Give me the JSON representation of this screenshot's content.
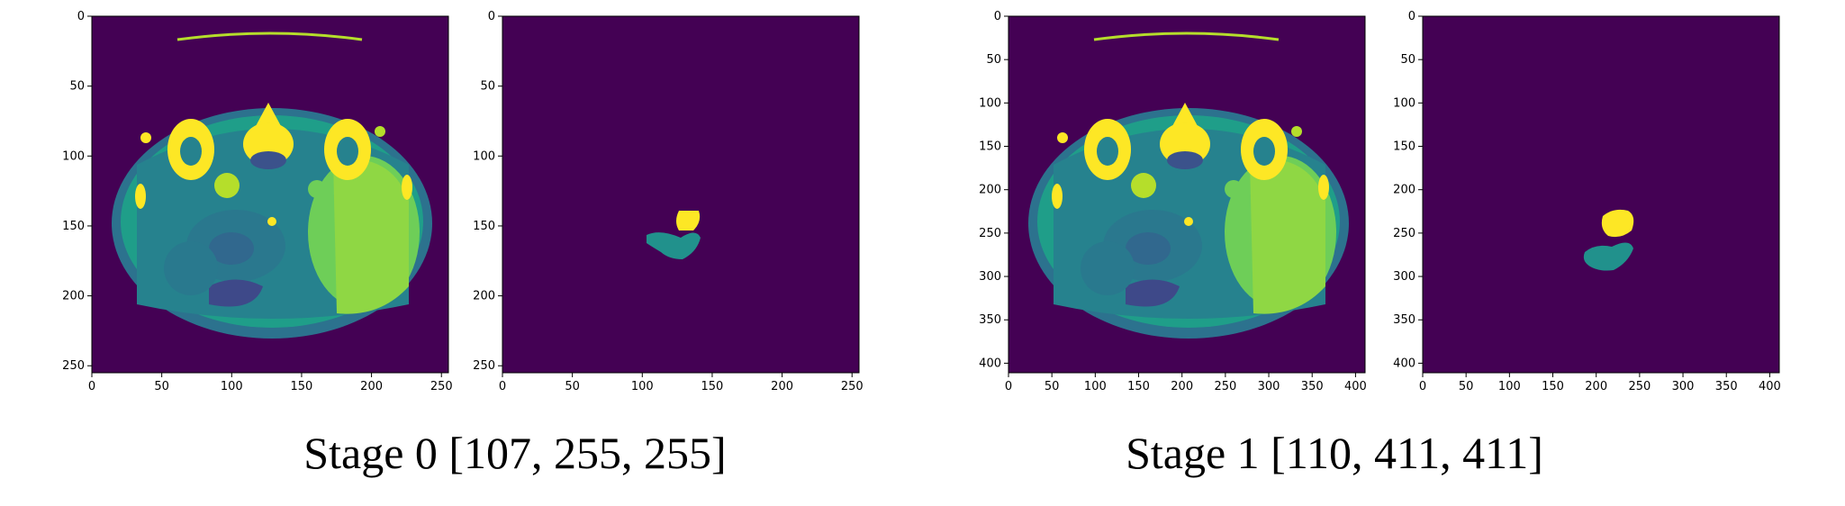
{
  "stages": [
    {
      "caption": "Stage 0 [107, 255, 255]",
      "ct_axis": {
        "x_ticks": [
          "0",
          "50",
          "100",
          "150",
          "200",
          "250"
        ],
        "y_ticks": [
          "0",
          "50",
          "100",
          "150",
          "200",
          "250"
        ],
        "max": 255
      },
      "mask_axis": {
        "x_ticks": [
          "0",
          "50",
          "100",
          "150",
          "200",
          "250"
        ],
        "y_ticks": [
          "0",
          "50",
          "100",
          "150",
          "200",
          "250"
        ],
        "max": 255
      }
    },
    {
      "caption": "Stage 1 [110, 411, 411]",
      "ct_axis": {
        "x_ticks": [
          "0",
          "50",
          "100",
          "150",
          "200",
          "250",
          "300",
          "350",
          "400"
        ],
        "y_ticks": [
          "0",
          "50",
          "100",
          "150",
          "200",
          "250",
          "300",
          "350",
          "400"
        ],
        "max": 411
      },
      "mask_axis": {
        "x_ticks": [
          "0",
          "50",
          "100",
          "150",
          "200",
          "250",
          "300",
          "350",
          "400"
        ],
        "y_ticks": [
          "0",
          "50",
          "100",
          "150",
          "200",
          "250",
          "300",
          "350",
          "400"
        ],
        "max": 411
      }
    }
  ],
  "colors": {
    "background": "#440154",
    "tissue": "#26828e",
    "soft": "#1f9e89",
    "bright": "#fde725",
    "mid": "#35b779"
  }
}
